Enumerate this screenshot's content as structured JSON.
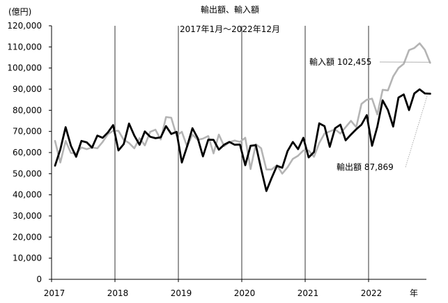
{
  "chart_data": {
    "type": "line",
    "title": "輸出額、輸入額",
    "subtitle": "2017年1月～2022年12月",
    "ylabel": "(億円)",
    "xlabel": "年",
    "ylim": [
      0,
      120000
    ],
    "y_ticks": [
      "0",
      "10,000",
      "20,000",
      "30,000",
      "40,000",
      "50,000",
      "60,000",
      "70,000",
      "80,000",
      "90,000",
      "100,000",
      "110,000",
      "120,000"
    ],
    "x_ticks": [
      "2017",
      "2018",
      "2019",
      "2020",
      "2021",
      "2022"
    ],
    "grid": "vertical lines at year boundaries",
    "series": [
      {
        "name": "輸出額",
        "color": "#000000",
        "label": "輸出額 87,869",
        "last_value": 87869,
        "values": [
          53800,
          61500,
          72000,
          63200,
          58000,
          65500,
          64800,
          62300,
          68000,
          67000,
          69500,
          73000,
          61000,
          64000,
          73700,
          68000,
          63700,
          70000,
          67500,
          66800,
          67200,
          72500,
          68800,
          69800,
          55300,
          63000,
          71500,
          66800,
          58200,
          66100,
          66000,
          61400,
          63700,
          65000,
          63700,
          63800,
          54000,
          63200,
          63500,
          52300,
          41800,
          48000,
          53700,
          52800,
          60700,
          65000,
          61600,
          67000,
          57700,
          60200,
          73800,
          72500,
          62700,
          71500,
          73200,
          65800,
          68500,
          71000,
          73200,
          77700,
          63200,
          72300,
          84700,
          80100,
          72300,
          86000,
          87500,
          80100,
          88000,
          89900,
          88000,
          87869
        ]
      },
      {
        "name": "輸入額",
        "color": "#b4b4b4",
        "label": "輸入額 102,455",
        "last_value": 102455,
        "values": [
          65500,
          55300,
          65500,
          59800,
          59500,
          62400,
          61600,
          62400,
          62000,
          65000,
          68700,
          70300,
          70300,
          66000,
          64500,
          62000,
          66800,
          63400,
          69800,
          70800,
          66200,
          76800,
          76500,
          68000,
          69800,
          62800,
          68500,
          66000,
          66600,
          67800,
          59600,
          68500,
          63000,
          64900,
          65700,
          65000,
          67000,
          52200,
          64000,
          62000,
          52000,
          52000,
          54000,
          50000,
          53000,
          57000,
          58500,
          61000,
          61000,
          58000,
          64500,
          69000,
          70000,
          71000,
          69000,
          72000,
          75000,
          72000,
          83000,
          85000,
          85500,
          78000,
          89700,
          89400,
          96000,
          100000,
          102000,
          108500,
          109500,
          111700,
          108600,
          102455
        ]
      }
    ]
  }
}
